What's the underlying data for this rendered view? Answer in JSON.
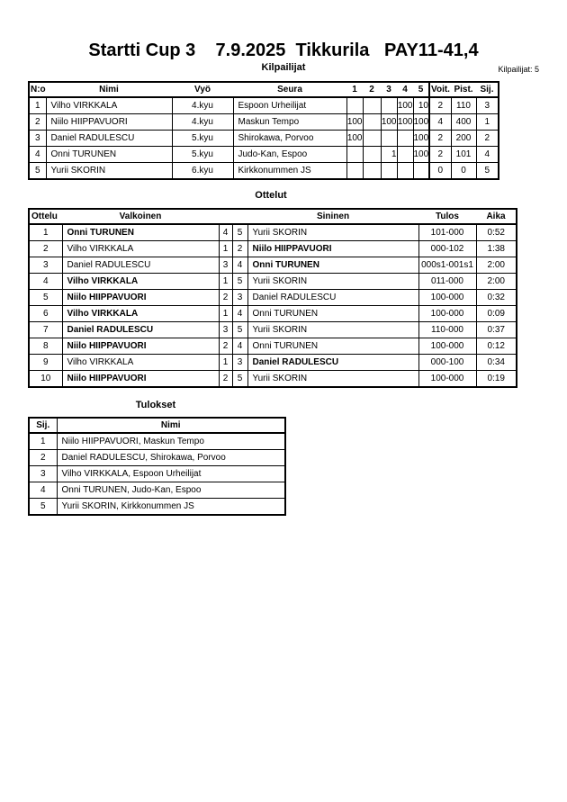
{
  "title": "Startti Cup 3    7.9.2025  Tikkurila   PAY11-41,4",
  "competitors": {
    "heading": "Kilpailijat",
    "count_label": "Kilpailijat: 5",
    "headers": [
      "N:o",
      "Nimi",
      "Vyö",
      "Seura",
      "1",
      "2",
      "3",
      "4",
      "5",
      "Voit.",
      "Pist.",
      "Sij."
    ],
    "rows": [
      [
        "1",
        "Vilho VIRKKALA",
        "4.kyu",
        "Espoon Urheilijat",
        "",
        "",
        "",
        "100",
        "10",
        "2",
        "110",
        "3"
      ],
      [
        "2",
        "Niilo HIIPPAVUORI",
        "4.kyu",
        "Maskun Tempo",
        "100",
        "",
        "100",
        "100",
        "100",
        "4",
        "400",
        "1"
      ],
      [
        "3",
        "Daniel RADULESCU",
        "5.kyu",
        "Shirokawa, Porvoo",
        "100",
        "",
        "",
        "",
        "100",
        "2",
        "200",
        "2"
      ],
      [
        "4",
        "Onni TURUNEN",
        "5.kyu",
        "Judo-Kan, Espoo",
        "",
        "",
        "1",
        "",
        "100",
        "2",
        "101",
        "4"
      ],
      [
        "5",
        "Yurii SKORIN",
        "6.kyu",
        "Kirkkonummen JS",
        "",
        "",
        "",
        "",
        "",
        "0",
        "0",
        "5"
      ]
    ]
  },
  "matches": {
    "heading": "Ottelut",
    "headers": [
      "Ottelu",
      "Valkoinen",
      "Sininen",
      "Tulos",
      "Aika"
    ],
    "rows": [
      {
        "no": "1",
        "white": "Onni TURUNEN",
        "wn": "4",
        "bn": "5",
        "blue": "Yurii SKORIN",
        "result": "101-000",
        "time": "0:52",
        "winner": "white"
      },
      {
        "no": "2",
        "white": "Vilho VIRKKALA",
        "wn": "1",
        "bn": "2",
        "blue": "Niilo HIIPPAVUORI",
        "result": "000-102",
        "time": "1:38",
        "winner": "blue"
      },
      {
        "no": "3",
        "white": "Daniel RADULESCU",
        "wn": "3",
        "bn": "4",
        "blue": "Onni TURUNEN",
        "result": "000s1-001s1",
        "time": "2:00",
        "winner": "blue"
      },
      {
        "no": "4",
        "white": "Vilho VIRKKALA",
        "wn": "1",
        "bn": "5",
        "blue": "Yurii SKORIN",
        "result": "011-000",
        "time": "2:00",
        "winner": "white"
      },
      {
        "no": "5",
        "white": "Niilo HIIPPAVUORI",
        "wn": "2",
        "bn": "3",
        "blue": "Daniel RADULESCU",
        "result": "100-000",
        "time": "0:32",
        "winner": "white"
      },
      {
        "no": "6",
        "white": "Vilho VIRKKALA",
        "wn": "1",
        "bn": "4",
        "blue": "Onni TURUNEN",
        "result": "100-000",
        "time": "0:09",
        "winner": "white"
      },
      {
        "no": "7",
        "white": "Daniel RADULESCU",
        "wn": "3",
        "bn": "5",
        "blue": "Yurii SKORIN",
        "result": "110-000",
        "time": "0:37",
        "winner": "white"
      },
      {
        "no": "8",
        "white": "Niilo HIIPPAVUORI",
        "wn": "2",
        "bn": "4",
        "blue": "Onni TURUNEN",
        "result": "100-000",
        "time": "0:12",
        "winner": "white"
      },
      {
        "no": "9",
        "white": "Vilho VIRKKALA",
        "wn": "1",
        "bn": "3",
        "blue": "Daniel RADULESCU",
        "result": "000-100",
        "time": "0:34",
        "winner": "blue"
      },
      {
        "no": "10",
        "white": "Niilo HIIPPAVUORI",
        "wn": "2",
        "bn": "5",
        "blue": "Yurii SKORIN",
        "result": "100-000",
        "time": "0:19",
        "winner": "white"
      }
    ]
  },
  "results": {
    "heading": "Tulokset",
    "headers": [
      "Sij.",
      "Nimi"
    ],
    "rows": [
      [
        "1",
        "Niilo HIIPPAVUORI, Maskun Tempo"
      ],
      [
        "2",
        "Daniel RADULESCU, Shirokawa, Porvoo"
      ],
      [
        "3",
        "Vilho VIRKKALA, Espoon Urheilijat"
      ],
      [
        "4",
        "Onni TURUNEN, Judo-Kan, Espoo"
      ],
      [
        "5",
        "Yurii SKORIN, Kirkkonummen JS"
      ]
    ]
  }
}
